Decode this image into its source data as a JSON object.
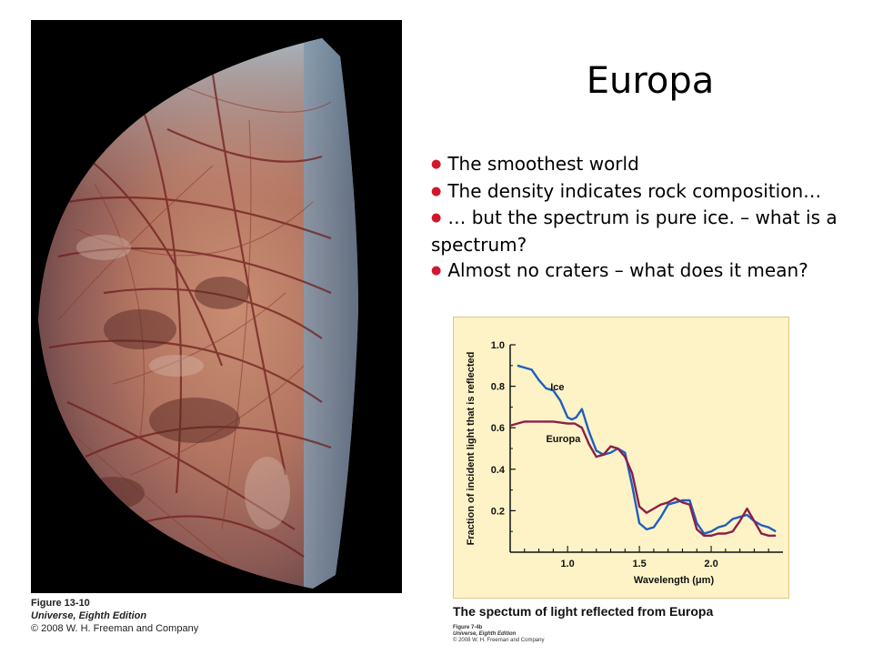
{
  "slide": {
    "title": "Europa",
    "bullets": [
      "The smoothest world",
      "The density indicates rock composition…",
      "… but the spectrum is pure ice. – what is a spectrum?",
      "Almost no craters – what does it mean?"
    ],
    "bullet_color": "#d4162c"
  },
  "photo": {
    "caption_figure": "Figure 13-10",
    "caption_book": "Universe, Eighth Edition",
    "caption_copyright": "© 2008 W. H. Freeman and Company"
  },
  "chart_caption": "The spectum of light reflected from Europa",
  "chart_credit": {
    "figure": "Figure 7-4b",
    "book": "Universe, Eighth Edition",
    "copyright": "© 2008 W. H. Freeman and Company"
  },
  "chart_data": {
    "type": "line",
    "title": "",
    "xlabel": "Wavelength (μm)",
    "ylabel": "Fraction of incident light that is reflected",
    "xlim": [
      0.6,
      2.5
    ],
    "ylim": [
      0.0,
      1.0
    ],
    "x_ticks": [
      1.0,
      1.5,
      2.0
    ],
    "x_tick_labels": [
      "1.0",
      "1.5",
      "2.0"
    ],
    "y_ticks": [
      0.2,
      0.4,
      0.6,
      0.8,
      1.0
    ],
    "y_tick_labels": [
      "0.2",
      "0.4",
      "0.6",
      "0.8",
      "1.0"
    ],
    "grid": false,
    "background": "#fdf3c7",
    "series": [
      {
        "name": "Ice",
        "color": "#1f5fbf",
        "x": [
          0.65,
          0.7,
          0.75,
          0.8,
          0.85,
          0.9,
          0.95,
          1.0,
          1.03,
          1.06,
          1.1,
          1.15,
          1.2,
          1.25,
          1.3,
          1.35,
          1.4,
          1.45,
          1.5,
          1.55,
          1.6,
          1.65,
          1.7,
          1.75,
          1.8,
          1.85,
          1.9,
          1.95,
          2.0,
          2.05,
          2.1,
          2.15,
          2.2,
          2.25,
          2.3,
          2.35,
          2.4,
          2.45
        ],
        "y": [
          0.9,
          0.89,
          0.88,
          0.83,
          0.79,
          0.78,
          0.73,
          0.65,
          0.64,
          0.65,
          0.69,
          0.58,
          0.49,
          0.47,
          0.48,
          0.5,
          0.48,
          0.32,
          0.14,
          0.11,
          0.12,
          0.17,
          0.23,
          0.24,
          0.25,
          0.25,
          0.14,
          0.09,
          0.1,
          0.12,
          0.13,
          0.16,
          0.17,
          0.18,
          0.15,
          0.13,
          0.12,
          0.1
        ]
      },
      {
        "name": "Europa",
        "color": "#8c1f4a",
        "x": [
          0.6,
          0.65,
          0.7,
          0.8,
          0.9,
          1.0,
          1.05,
          1.1,
          1.15,
          1.2,
          1.25,
          1.3,
          1.35,
          1.4,
          1.45,
          1.5,
          1.55,
          1.6,
          1.65,
          1.7,
          1.75,
          1.8,
          1.85,
          1.9,
          1.95,
          2.0,
          2.05,
          2.1,
          2.15,
          2.2,
          2.25,
          2.3,
          2.35,
          2.4,
          2.45
        ],
        "y": [
          0.61,
          0.62,
          0.63,
          0.63,
          0.63,
          0.62,
          0.62,
          0.6,
          0.52,
          0.46,
          0.47,
          0.51,
          0.5,
          0.46,
          0.38,
          0.22,
          0.19,
          0.21,
          0.23,
          0.24,
          0.26,
          0.24,
          0.23,
          0.11,
          0.08,
          0.08,
          0.09,
          0.09,
          0.1,
          0.15,
          0.21,
          0.15,
          0.09,
          0.08,
          0.08
        ]
      }
    ],
    "series_label_positions": "Ice at upper-middle near 1.0 μm; Europa below its curve near 1.0 μm"
  }
}
